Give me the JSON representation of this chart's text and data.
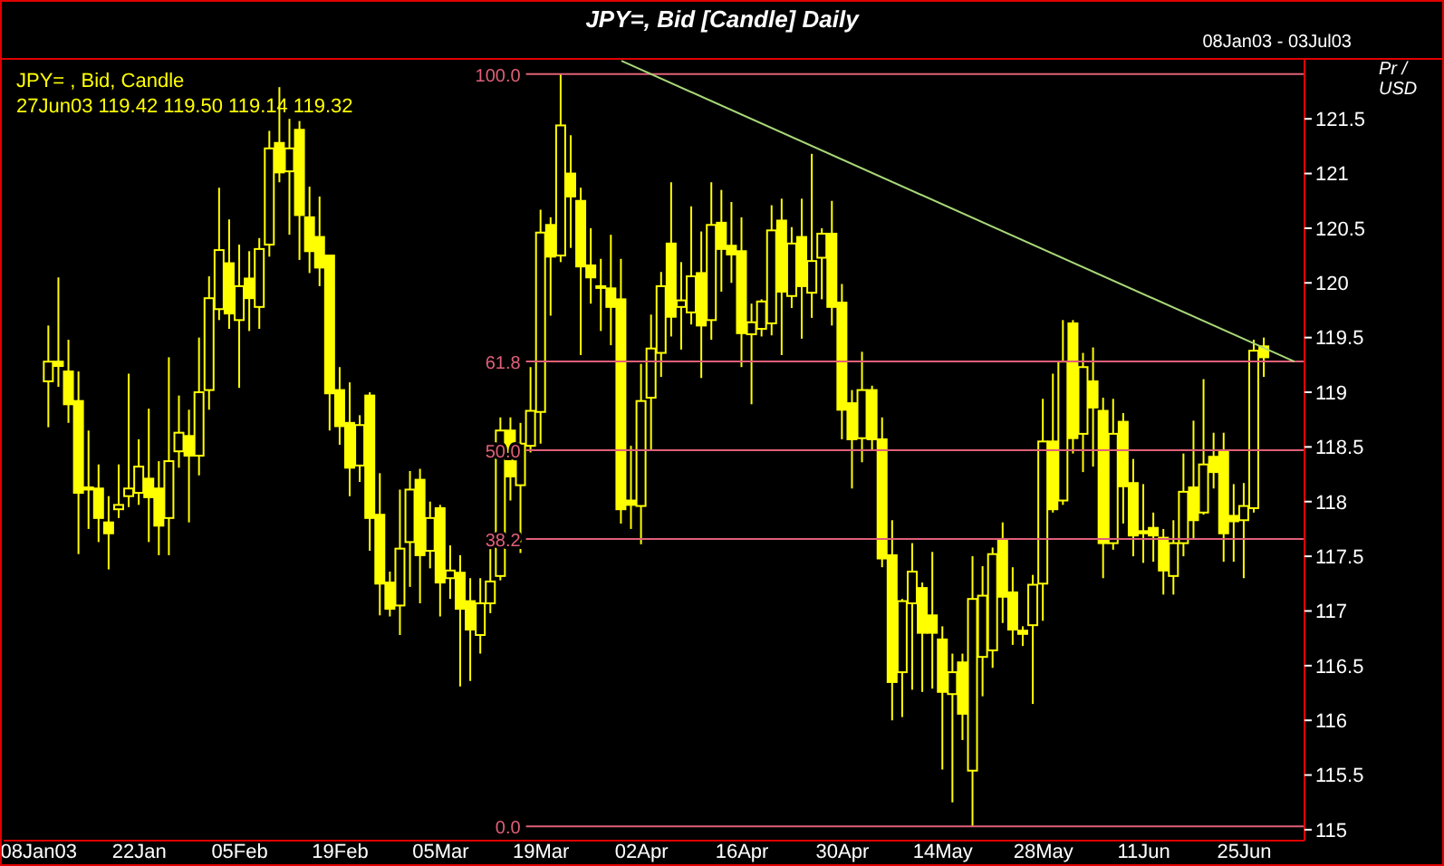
{
  "chart_data": {
    "type": "candlestick",
    "title": "JPY=, Bid [Candle] Daily",
    "subtitle": "08Jan03 - 03Jul03",
    "ylabel": "Pr / USD",
    "annotations": [
      "JPY= , Bid, Candle",
      "27Jun03 119.42 119.50 119.14 119.32"
    ],
    "color": "#ffff00",
    "categories": [
      "08Jan03",
      null,
      null,
      null,
      null,
      null,
      null,
      null,
      null,
      null,
      "22Jan",
      null,
      null,
      null,
      null,
      null,
      null,
      null,
      null,
      null,
      "05Feb",
      null,
      null,
      null,
      null,
      null,
      null,
      null,
      null,
      null,
      "19Feb",
      null,
      null,
      null,
      null,
      null,
      null,
      null,
      null,
      null,
      "05Mar",
      null,
      null,
      null,
      null,
      null,
      null,
      null,
      null,
      null,
      "19Mar",
      null,
      null,
      null,
      null,
      null,
      null,
      null,
      null,
      null,
      "02Apr",
      null,
      null,
      null,
      null,
      null,
      null,
      null,
      null,
      null,
      "16Apr",
      null,
      null,
      null,
      null,
      null,
      null,
      null,
      null,
      null,
      "30Apr",
      null,
      null,
      null,
      null,
      null,
      null,
      null,
      null,
      null,
      "14May",
      null,
      null,
      null,
      null,
      null,
      null,
      null,
      null,
      null,
      "28May",
      null,
      null,
      null,
      null,
      null,
      null,
      null,
      null,
      null,
      "11Jun",
      null,
      null,
      null,
      null,
      null,
      null,
      null,
      null,
      null,
      "25Jun",
      null,
      null,
      null,
      null,
      null
    ],
    "ohlc": [
      null,
      [
        119.1,
        119.61,
        118.68,
        119.28
      ],
      [
        119.28,
        120.05,
        119.05,
        119.24
      ],
      [
        119.19,
        119.48,
        118.72,
        118.89
      ],
      [
        118.92,
        119.19,
        117.52,
        118.08
      ],
      [
        118.13,
        118.65,
        117.75,
        118.11
      ],
      [
        118.12,
        118.34,
        117.63,
        117.85
      ],
      [
        117.81,
        118.05,
        117.38,
        117.71
      ],
      [
        117.93,
        118.34,
        117.85,
        117.97
      ],
      [
        118.05,
        119.17,
        117.95,
        118.12
      ],
      [
        118.08,
        118.57,
        117.97,
        118.32
      ],
      [
        118.21,
        118.85,
        117.63,
        118.04
      ],
      [
        118.12,
        118.37,
        117.51,
        117.78
      ],
      [
        117.85,
        119.32,
        117.51,
        118.37
      ],
      [
        118.46,
        118.97,
        118.31,
        118.63
      ],
      [
        118.6,
        118.84,
        117.81,
        118.42
      ],
      [
        118.42,
        119.5,
        118.24,
        119.0
      ],
      [
        119.02,
        120.06,
        118.84,
        119.86
      ],
      [
        119.76,
        120.87,
        119.66,
        120.3
      ],
      [
        120.18,
        120.58,
        119.58,
        119.72
      ],
      [
        119.66,
        120.35,
        119.04,
        119.97
      ],
      [
        120.04,
        120.29,
        119.56,
        119.86
      ],
      [
        119.78,
        120.41,
        119.58,
        120.31
      ],
      [
        120.35,
        121.39,
        120.24,
        121.23
      ],
      [
        121.28,
        121.79,
        120.92,
        121.01
      ],
      [
        121.02,
        121.5,
        120.44,
        121.23
      ],
      [
        121.4,
        121.48,
        120.21,
        120.62
      ],
      [
        120.6,
        120.88,
        120.09,
        120.29
      ],
      [
        120.42,
        120.79,
        119.97,
        120.14
      ],
      [
        120.25,
        120.25,
        118.65,
        118.99
      ],
      [
        119.02,
        119.23,
        118.52,
        118.69
      ],
      [
        118.72,
        119.09,
        118.05,
        118.31
      ],
      [
        118.33,
        118.79,
        118.18,
        118.7
      ],
      [
        118.97,
        119.0,
        117.55,
        117.85
      ],
      [
        117.88,
        118.26,
        116.96,
        117.25
      ],
      [
        117.26,
        117.36,
        116.95,
        117.02
      ],
      [
        117.05,
        118.11,
        116.78,
        117.57
      ],
      [
        117.63,
        118.28,
        117.22,
        118.11
      ],
      [
        118.2,
        118.3,
        117.07,
        117.51
      ],
      [
        117.55,
        118.0,
        117.39,
        117.85
      ],
      [
        117.94,
        117.97,
        116.95,
        117.26
      ],
      [
        117.3,
        117.6,
        117.11,
        117.37
      ],
      [
        117.35,
        117.51,
        116.31,
        117.02
      ],
      [
        117.09,
        117.3,
        116.36,
        116.83
      ],
      [
        116.78,
        117.3,
        116.61,
        117.07
      ],
      [
        117.07,
        117.58,
        116.98,
        117.27
      ],
      [
        117.32,
        118.77,
        117.28,
        118.65
      ],
      [
        118.65,
        118.77,
        118.01,
        118.23
      ],
      [
        118.15,
        118.72,
        117.53,
        118.53
      ],
      [
        118.51,
        119.23,
        118.45,
        118.83
      ],
      [
        118.82,
        120.67,
        118.53,
        120.46
      ],
      [
        120.53,
        120.6,
        119.7,
        120.24
      ],
      [
        120.25,
        121.91,
        120.19,
        121.44
      ],
      [
        121.0,
        121.35,
        120.32,
        120.79
      ],
      [
        120.75,
        120.87,
        119.34,
        120.15
      ],
      [
        120.16,
        120.5,
        119.81,
        120.05
      ],
      [
        119.97,
        120.22,
        119.56,
        119.96
      ],
      [
        119.95,
        120.44,
        119.43,
        119.78
      ],
      [
        119.85,
        120.22,
        117.8,
        117.93
      ],
      [
        118.01,
        118.51,
        117.75,
        117.97
      ],
      [
        117.96,
        119.26,
        117.61,
        118.92
      ],
      [
        118.95,
        119.71,
        118.47,
        119.4
      ],
      [
        119.36,
        120.1,
        119.14,
        119.97
      ],
      [
        120.36,
        120.92,
        119.51,
        119.69
      ],
      [
        119.78,
        120.19,
        119.39,
        119.84
      ],
      [
        119.73,
        120.7,
        119.62,
        120.06
      ],
      [
        120.09,
        120.47,
        119.13,
        119.61
      ],
      [
        119.66,
        120.92,
        119.48,
        120.53
      ],
      [
        120.55,
        120.85,
        119.92,
        120.31
      ],
      [
        120.34,
        120.74,
        120.0,
        120.26
      ],
      [
        120.29,
        120.6,
        119.23,
        119.54
      ],
      [
        119.53,
        119.81,
        118.89,
        119.64
      ],
      [
        119.58,
        119.85,
        119.51,
        119.83
      ],
      [
        119.63,
        120.71,
        119.52,
        120.48
      ],
      [
        120.57,
        120.77,
        119.34,
        119.92
      ],
      [
        119.88,
        120.51,
        119.77,
        120.36
      ],
      [
        120.42,
        120.77,
        119.49,
        119.97
      ],
      [
        119.91,
        121.18,
        119.68,
        120.2
      ],
      [
        120.23,
        120.5,
        119.85,
        120.45
      ],
      [
        120.45,
        120.75,
        119.61,
        119.78
      ],
      [
        119.82,
        119.99,
        118.57,
        118.84
      ],
      [
        118.9,
        119.02,
        118.12,
        118.57
      ],
      [
        118.58,
        119.37,
        118.36,
        119.02
      ],
      [
        119.02,
        119.06,
        118.47,
        118.57
      ],
      [
        118.57,
        118.77,
        117.4,
        117.48
      ],
      [
        117.51,
        117.83,
        116.0,
        116.35
      ],
      [
        116.44,
        117.11,
        116.03,
        117.09
      ],
      [
        117.07,
        117.62,
        116.28,
        117.36
      ],
      [
        117.21,
        117.26,
        116.26,
        116.8
      ],
      [
        116.96,
        117.54,
        116.29,
        116.8
      ],
      [
        116.74,
        116.86,
        115.55,
        116.26
      ],
      [
        116.24,
        116.61,
        115.25,
        116.44
      ],
      [
        116.53,
        116.61,
        115.82,
        116.06
      ],
      [
        115.54,
        117.5,
        115.03,
        117.11
      ],
      [
        116.58,
        117.41,
        116.22,
        117.14
      ],
      [
        116.64,
        117.58,
        116.48,
        117.52
      ],
      [
        117.65,
        117.81,
        116.89,
        117.13
      ],
      [
        117.17,
        117.4,
        116.69,
        116.83
      ],
      [
        116.82,
        116.86,
        116.68,
        116.79
      ],
      [
        116.87,
        117.33,
        116.15,
        117.24
      ],
      [
        117.25,
        118.94,
        116.91,
        118.55
      ],
      [
        118.55,
        119.17,
        117.9,
        117.93
      ],
      [
        118.01,
        119.66,
        117.97,
        119.28
      ],
      [
        119.63,
        119.66,
        118.44,
        118.58
      ],
      [
        118.62,
        119.36,
        118.27,
        119.23
      ],
      [
        119.1,
        119.41,
        118.32,
        118.86
      ],
      [
        118.83,
        118.95,
        117.3,
        117.62
      ],
      [
        117.62,
        118.94,
        117.56,
        118.62
      ],
      [
        118.73,
        118.81,
        117.8,
        118.14
      ],
      [
        118.17,
        118.39,
        117.5,
        117.69
      ],
      [
        117.73,
        118.16,
        117.44,
        117.71
      ],
      [
        117.76,
        117.9,
        117.45,
        117.69
      ],
      [
        117.67,
        117.75,
        117.15,
        117.37
      ],
      [
        117.32,
        117.83,
        117.15,
        117.62
      ],
      [
        117.62,
        118.44,
        117.5,
        118.09
      ],
      [
        118.13,
        118.74,
        117.66,
        117.83
      ],
      [
        117.9,
        119.12,
        117.88,
        118.34
      ],
      [
        118.41,
        118.63,
        118.12,
        118.27
      ],
      [
        118.46,
        118.63,
        117.45,
        117.71
      ],
      [
        117.87,
        118.16,
        117.45,
        117.82
      ],
      [
        117.83,
        118.17,
        117.3,
        117.96
      ],
      [
        117.94,
        119.48,
        117.9,
        119.38
      ],
      [
        119.42,
        119.5,
        119.14,
        119.32
      ],
      null,
      null,
      null
    ],
    "series": [
      {
        "type": "line",
        "color": "#a8d878",
        "values": [
          null,
          null,
          null,
          null,
          null,
          null,
          null,
          null,
          null,
          null,
          null,
          null,
          null,
          null,
          null,
          null,
          null,
          null,
          null,
          null,
          null,
          null,
          null,
          null,
          null,
          null,
          null,
          null,
          null,
          null,
          null,
          null,
          null,
          null,
          null,
          null,
          null,
          null,
          null,
          null,
          null,
          null,
          null,
          null,
          null,
          null,
          null,
          null,
          null,
          null,
          null,
          null,
          null,
          null,
          null,
          null,
          null,
          null,
          122.03,
          null,
          null,
          null,
          null,
          null,
          null,
          null,
          null,
          null,
          null,
          null,
          null,
          null,
          null,
          null,
          null,
          null,
          null,
          null,
          null,
          null,
          null,
          null,
          null,
          null,
          null,
          null,
          null,
          null,
          null,
          null,
          null,
          null,
          null,
          null,
          null,
          null,
          null,
          null,
          null,
          null,
          null,
          null,
          null,
          null,
          null,
          null,
          null,
          null,
          null,
          null,
          null,
          null,
          null,
          null,
          null,
          null,
          null,
          null,
          null,
          null,
          null,
          null,
          null,
          null,
          null,
          119.28
        ]
      }
    ],
    "ref_lines": [
      {
        "axis": "y2",
        "value": 100,
        "label": "100.0",
        "color": "#e06078"
      },
      {
        "axis": "y2",
        "value": 61.8,
        "label": "61.8",
        "color": "#e06078"
      },
      {
        "axis": "y2",
        "value": 50,
        "label": "50.0",
        "color": "#e06078"
      },
      {
        "axis": "y2",
        "value": 38.2,
        "label": "38.2",
        "color": "#e06078"
      },
      {
        "axis": "y2",
        "value": 0,
        "label": "0.0",
        "color": "#e06078"
      }
    ],
    "y2lim": [
      -1.9,
      101.9
    ],
    "ylim": [
      114.9,
      122.04
    ],
    "yticks": [
      115,
      115.5,
      116,
      116.5,
      117,
      117.5,
      118,
      118.5,
      119,
      119.5,
      120,
      120.5,
      121,
      121.5
    ],
    "grid": false
  }
}
